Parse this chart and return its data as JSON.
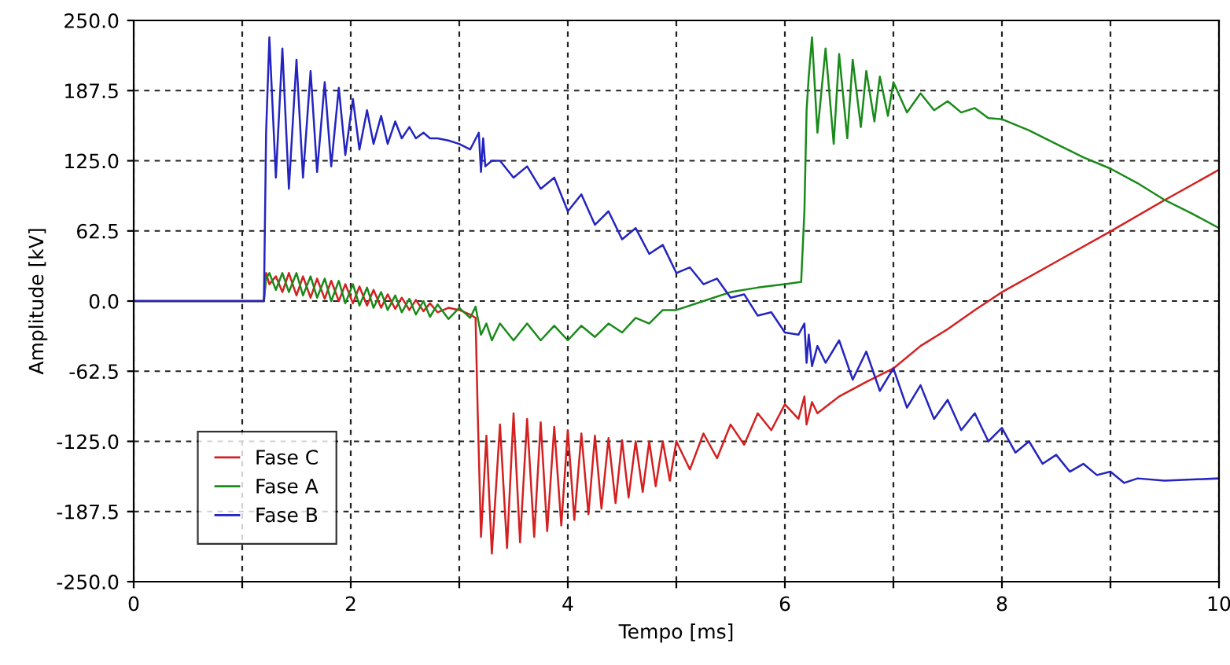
{
  "chart_data": {
    "type": "line",
    "xlabel": "Tempo [ms]",
    "ylabel": "Amplitude [kV]",
    "xlim": [
      0,
      10
    ],
    "ylim": [
      -250,
      250
    ],
    "xticks": [
      0,
      {
        "value": 1,
        "label": null
      },
      2,
      {
        "value": 3,
        "label": null
      },
      4,
      {
        "value": 5,
        "label": null
      },
      6,
      {
        "value": 7,
        "label": null
      },
      8,
      {
        "value": 9,
        "label": null
      },
      10
    ],
    "yticks": [
      {
        "value": -250,
        "label": "-250.0"
      },
      {
        "value": -187.5,
        "label": "-187.5"
      },
      {
        "value": -125,
        "label": "-125.0"
      },
      {
        "value": -62.5,
        "label": "-62.5"
      },
      {
        "value": 0,
        "label": "0.0"
      },
      {
        "value": 62.5,
        "label": "62.5"
      },
      {
        "value": 125,
        "label": "125.0"
      },
      {
        "value": 187.5,
        "label": "187.5"
      },
      {
        "value": 250,
        "label": "250.0"
      }
    ],
    "grid": true,
    "legend": "bottom left",
    "line_style": "solid",
    "marker": "none",
    "series": [
      {
        "name": "Fase C",
        "color": "#d42020",
        "x": [
          0,
          1.2,
          1.22,
          1.25,
          1.31,
          1.37,
          1.43,
          1.5,
          1.56,
          1.63,
          1.69,
          1.76,
          1.82,
          1.89,
          1.95,
          2.02,
          2.08,
          2.15,
          2.21,
          2.28,
          2.34,
          2.41,
          2.47,
          2.54,
          2.6,
          2.67,
          2.73,
          2.8,
          2.9,
          3.0,
          3.1,
          3.15,
          3.17,
          3.2,
          3.25,
          3.3,
          3.375,
          3.44,
          3.5,
          3.56,
          3.625,
          3.69,
          3.75,
          3.81,
          3.875,
          3.94,
          4.0,
          4.06,
          4.125,
          4.19,
          4.25,
          4.31,
          4.375,
          4.44,
          4.5,
          4.56,
          4.625,
          4.69,
          4.75,
          4.81,
          4.875,
          4.94,
          5.0,
          5.125,
          5.25,
          5.375,
          5.5,
          5.625,
          5.75,
          5.875,
          6.0,
          6.125,
          6.18,
          6.2,
          6.25,
          6.3,
          6.5,
          6.75,
          7.0,
          7.25,
          7.5,
          7.75,
          8.0,
          8.5,
          9.0,
          9.5,
          10
        ],
        "values": [
          0,
          0,
          25,
          15,
          22,
          8,
          25,
          5,
          22,
          3,
          20,
          2,
          18,
          0,
          15,
          -2,
          13,
          -4,
          10,
          -6,
          6,
          -7,
          3,
          -8,
          1,
          -9,
          -2,
          -10,
          -6,
          -8,
          -12,
          -15,
          -100,
          -210,
          -120,
          -225,
          -110,
          -220,
          -100,
          -215,
          -105,
          -210,
          -108,
          -205,
          -112,
          -200,
          -115,
          -195,
          -118,
          -190,
          -120,
          -185,
          -122,
          -180,
          -124,
          -175,
          -125,
          -170,
          -125,
          -165,
          -125,
          -160,
          -125,
          -150,
          -118,
          -140,
          -110,
          -128,
          -100,
          -115,
          -92,
          -105,
          -85,
          -110,
          -90,
          -100,
          -85,
          -72,
          -60,
          -40,
          -25,
          -8,
          8,
          35,
          62,
          90,
          117
        ]
      },
      {
        "name": "Fase A",
        "color": "#1a8a1a",
        "x": [
          0,
          1.2,
          1.22,
          1.25,
          1.31,
          1.37,
          1.43,
          1.5,
          1.56,
          1.63,
          1.69,
          1.76,
          1.82,
          1.89,
          1.95,
          2.02,
          2.08,
          2.15,
          2.21,
          2.28,
          2.34,
          2.41,
          2.47,
          2.54,
          2.6,
          2.67,
          2.73,
          2.8,
          2.9,
          3.0,
          3.1,
          3.15,
          3.2,
          3.25,
          3.3,
          3.375,
          3.5,
          3.625,
          3.75,
          3.875,
          4.0,
          4.125,
          4.25,
          4.375,
          4.5,
          4.625,
          4.75,
          4.875,
          5.0,
          5.25,
          5.5,
          5.75,
          6.0,
          6.15,
          6.18,
          6.2,
          6.22,
          6.25,
          6.3,
          6.375,
          6.45,
          6.5,
          6.575,
          6.625,
          6.7,
          6.75,
          6.825,
          6.875,
          6.95,
          7.0,
          7.125,
          7.25,
          7.375,
          7.5,
          7.625,
          7.75,
          7.875,
          8.0,
          8.25,
          8.5,
          8.75,
          9.0,
          9.25,
          9.5,
          9.75,
          10
        ],
        "values": [
          0,
          0,
          20,
          25,
          10,
          25,
          8,
          25,
          5,
          22,
          3,
          20,
          0,
          18,
          -2,
          15,
          -4,
          12,
          -6,
          8,
          -8,
          5,
          -10,
          2,
          -12,
          0,
          -14,
          -3,
          -16,
          -6,
          -15,
          -5,
          -30,
          -20,
          -35,
          -20,
          -35,
          -20,
          -35,
          -22,
          -35,
          -22,
          -32,
          -20,
          -28,
          -15,
          -20,
          -8,
          -8,
          0,
          8,
          12,
          15,
          17,
          80,
          170,
          200,
          235,
          150,
          225,
          140,
          220,
          145,
          215,
          155,
          205,
          160,
          200,
          165,
          195,
          168,
          185,
          170,
          178,
          168,
          172,
          163,
          162,
          152,
          140,
          128,
          118,
          105,
          90,
          78,
          65
        ]
      },
      {
        "name": "Fase B",
        "color": "#2424c0",
        "x": [
          0,
          1.2,
          1.22,
          1.25,
          1.31,
          1.37,
          1.43,
          1.5,
          1.56,
          1.63,
          1.69,
          1.76,
          1.82,
          1.89,
          1.95,
          2.02,
          2.08,
          2.15,
          2.21,
          2.28,
          2.34,
          2.41,
          2.47,
          2.54,
          2.6,
          2.67,
          2.73,
          2.8,
          2.9,
          3.0,
          3.1,
          3.18,
          3.2,
          3.22,
          3.24,
          3.3,
          3.375,
          3.5,
          3.625,
          3.75,
          3.875,
          4.0,
          4.125,
          4.25,
          4.375,
          4.5,
          4.625,
          4.75,
          4.875,
          5.0,
          5.125,
          5.25,
          5.375,
          5.5,
          5.625,
          5.75,
          5.875,
          6.0,
          6.125,
          6.18,
          6.2,
          6.22,
          6.25,
          6.3,
          6.375,
          6.5,
          6.625,
          6.75,
          6.875,
          7.0,
          7.125,
          7.25,
          7.375,
          7.5,
          7.625,
          7.75,
          7.875,
          8.0,
          8.125,
          8.25,
          8.375,
          8.5,
          8.625,
          8.75,
          8.875,
          9.0,
          9.125,
          9.25,
          9.5,
          9.75,
          10
        ],
        "values": [
          0,
          0,
          150,
          235,
          110,
          225,
          100,
          215,
          110,
          205,
          115,
          195,
          120,
          190,
          130,
          180,
          135,
          170,
          140,
          165,
          140,
          160,
          145,
          155,
          145,
          150,
          145,
          145,
          143,
          140,
          135,
          150,
          115,
          145,
          120,
          125,
          125,
          110,
          120,
          100,
          110,
          80,
          95,
          68,
          80,
          55,
          65,
          42,
          50,
          25,
          30,
          15,
          20,
          3,
          6,
          -13,
          -10,
          -28,
          -30,
          -20,
          -55,
          -30,
          -58,
          -40,
          -55,
          -35,
          -70,
          -45,
          -80,
          -60,
          -95,
          -75,
          -105,
          -88,
          -115,
          -100,
          -125,
          -113,
          -135,
          -125,
          -145,
          -137,
          -152,
          -145,
          -155,
          -152,
          -162,
          -158,
          -160,
          -159,
          -158
        ]
      }
    ]
  }
}
